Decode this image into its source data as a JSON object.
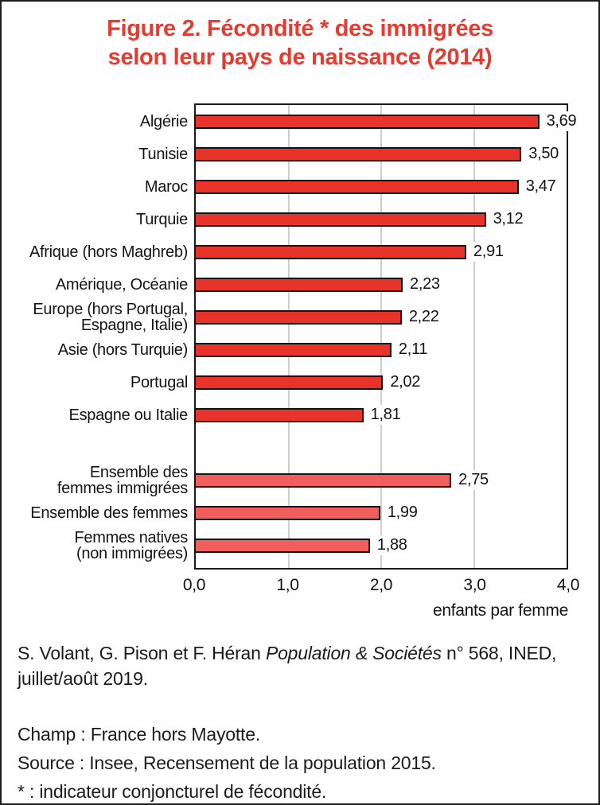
{
  "title": {
    "line1": "Figure 2. Fécondité * des immigrées",
    "line2": "selon leur pays de naissance (2014)",
    "color": "#e63b31"
  },
  "chart_data": {
    "type": "bar",
    "orientation": "horizontal",
    "title": "Figure 2. Fécondité* des immigrées selon leur pays de naissance (2014)",
    "xlabel": "enfants par femme",
    "xlim": [
      0,
      4
    ],
    "x_tick_labels": [
      "0,0",
      "1,0",
      "2,0",
      "3,0",
      "4,0"
    ],
    "grid": "vertical gridlines at 1,0 / 2,0 / 3,0",
    "colors": {
      "country": "#e8332b",
      "aggregate": "#f05e5e"
    },
    "bar_border_color": "#141414",
    "bars": [
      {
        "label_lines": [
          "Algérie"
        ],
        "value": 3.69,
        "display": "3,69",
        "group": "country"
      },
      {
        "label_lines": [
          "Tunisie"
        ],
        "value": 3.5,
        "display": "3,50",
        "group": "country"
      },
      {
        "label_lines": [
          "Maroc"
        ],
        "value": 3.47,
        "display": "3,47",
        "group": "country"
      },
      {
        "label_lines": [
          "Turquie"
        ],
        "value": 3.12,
        "display": "3,12",
        "group": "country"
      },
      {
        "label_lines": [
          "Afrique (hors Maghreb)"
        ],
        "value": 2.91,
        "display": "2,91",
        "group": "country"
      },
      {
        "label_lines": [
          "Amérique, Océanie"
        ],
        "value": 2.23,
        "display": "2,23",
        "group": "country"
      },
      {
        "label_lines": [
          "Europe (hors Portugal,",
          "Espagne, Italie)"
        ],
        "value": 2.22,
        "display": "2,22",
        "group": "country"
      },
      {
        "label_lines": [
          "Asie (hors Turquie)"
        ],
        "value": 2.11,
        "display": "2,11",
        "group": "country"
      },
      {
        "label_lines": [
          "Portugal"
        ],
        "value": 2.02,
        "display": "2,02",
        "group": "country"
      },
      {
        "label_lines": [
          "Espagne ou Italie"
        ],
        "value": 1.81,
        "display": "1,81",
        "group": "country"
      },
      {
        "spacer": true
      },
      {
        "label_lines": [
          "Ensemble des",
          "femmes immigrées"
        ],
        "value": 2.75,
        "display": "2,75",
        "group": "aggregate"
      },
      {
        "label_lines": [
          "Ensemble des femmes"
        ],
        "value": 1.99,
        "display": "1,99",
        "group": "aggregate"
      },
      {
        "label_lines": [
          "Femmes natives",
          "(non immigrées)"
        ],
        "value": 1.88,
        "display": "1,88",
        "group": "aggregate"
      }
    ]
  },
  "footer": {
    "citation": {
      "prefix": "S. Volant, G. Pison et F. Héran ",
      "italic": "Population & Sociétés",
      "suffix": " n° 568, INED, juillet/août 2019."
    },
    "notes": [
      "Champ : France hors Mayotte.",
      "Source : Insee, Recensement de la population 2015.",
      "* : indicateur conjoncturel de fécondité."
    ]
  }
}
